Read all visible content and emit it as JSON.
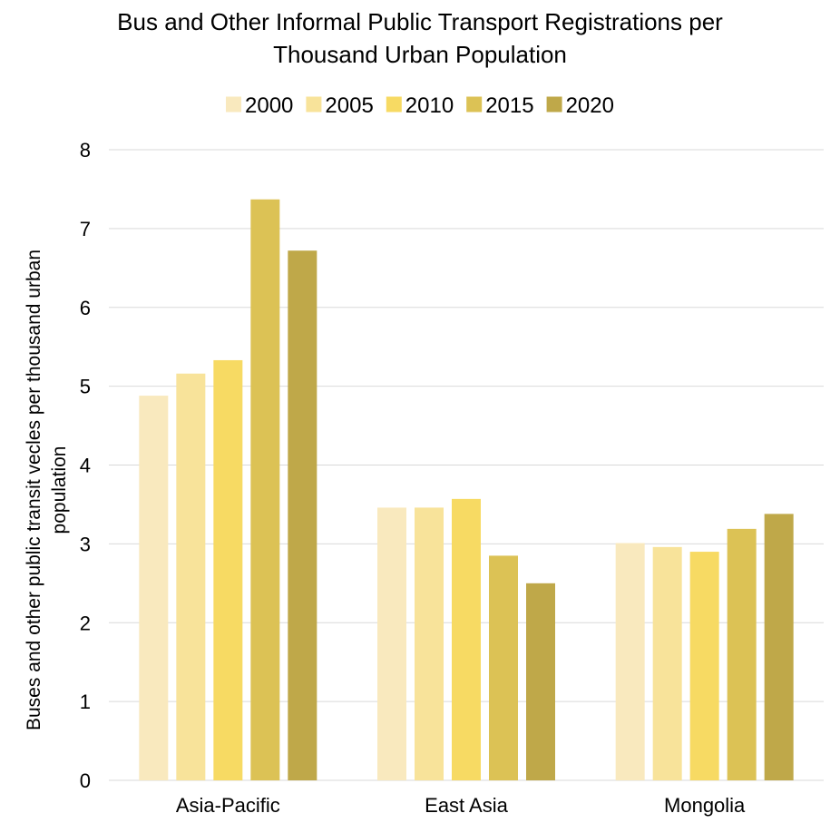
{
  "chart_data": {
    "type": "bar",
    "title_line1": "Bus and Other Informal Public Transport Registrations per",
    "title_line2": "Thousand Urban Population",
    "ylabel_line1": "Buses and other public transit vecles per thousand urban",
    "ylabel_line2": "population",
    "xlabel": "",
    "categories": [
      "Asia-Pacific",
      "East Asia",
      "Mongolia"
    ],
    "ylim": [
      0,
      8
    ],
    "yticks": [
      "0",
      "1",
      "2",
      "3",
      "4",
      "5",
      "6",
      "7",
      "8"
    ],
    "grid": true,
    "legend_position": "top",
    "series": [
      {
        "name": "2000",
        "color": "#F9E9BE",
        "values": [
          4.88,
          3.46,
          3.01
        ]
      },
      {
        "name": "2005",
        "color": "#F8E39A",
        "values": [
          5.16,
          3.46,
          2.96
        ]
      },
      {
        "name": "2010",
        "color": "#F7DA63",
        "values": [
          5.33,
          3.57,
          2.9
        ]
      },
      {
        "name": "2015",
        "color": "#DCC255",
        "values": [
          7.37,
          2.85,
          3.19
        ]
      },
      {
        "name": "2020",
        "color": "#BFA849",
        "values": [
          6.72,
          2.5,
          3.38
        ]
      }
    ]
  }
}
